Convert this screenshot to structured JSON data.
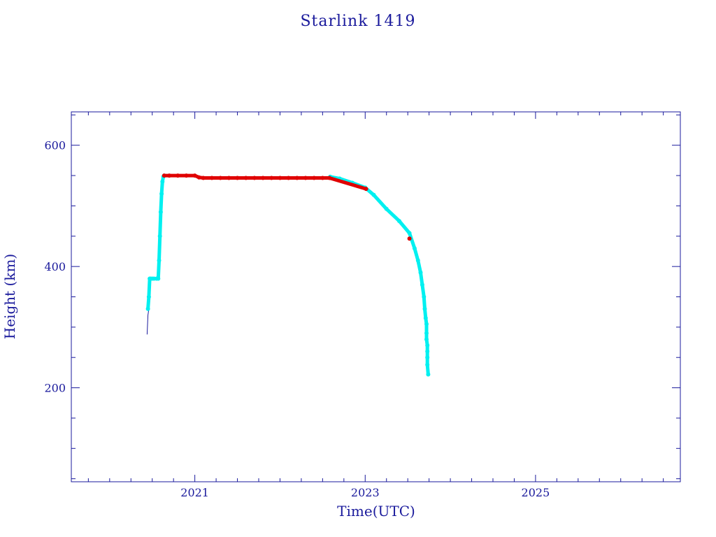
{
  "chart_data": {
    "type": "scatter",
    "title": "Starlink 1419",
    "xlabel": "Time(UTC)",
    "ylabel": "Height (km)",
    "xlim": [
      2019.55,
      2026.7
    ],
    "ylim": [
      45,
      655
    ],
    "x_ticks": [
      {
        "value": 2021,
        "label": "2021"
      },
      {
        "value": 2023,
        "label": "2023"
      },
      {
        "value": 2025,
        "label": "2025"
      }
    ],
    "y_ticks": [
      {
        "value": 200,
        "label": "200"
      },
      {
        "value": 400,
        "label": "400"
      },
      {
        "value": 600,
        "label": "600"
      }
    ],
    "grid": false,
    "legend": "none",
    "colors": {
      "axis": "#1a1a9c",
      "trace": "#1a1a9c",
      "normal": "#00f0f0",
      "station_keeping": "#e00000"
    },
    "series": [
      {
        "role": "trace",
        "color": "#1a1a9c",
        "x": [
          2020.44,
          2020.45,
          2020.46,
          2020.46,
          2020.48
        ],
        "y": [
          288,
          320,
          330,
          345,
          350
        ]
      },
      {
        "role": "points",
        "color": "#00f0f0",
        "x": [
          2020.45,
          2020.46,
          2020.47,
          2020.48,
          2020.5,
          2020.52,
          2020.55,
          2020.57,
          2020.58,
          2020.59,
          2020.6,
          2020.61,
          2020.62,
          2020.63,
          2020.64,
          2022.59,
          2022.7,
          2022.85,
          2023.0,
          2023.1,
          2023.25,
          2023.4,
          2023.52,
          2023.58,
          2023.62,
          2023.65,
          2023.67,
          2023.69,
          2023.7,
          2023.71,
          2023.72,
          2023.72,
          2023.72,
          2023.73,
          2023.73,
          2023.73,
          2023.73,
          2023.74
        ],
        "y": [
          330,
          350,
          380,
          380,
          380,
          380,
          380,
          380,
          410,
          450,
          490,
          520,
          540,
          548,
          550,
          548,
          545,
          538,
          530,
          518,
          495,
          475,
          455,
          430,
          410,
          390,
          370,
          350,
          330,
          315,
          305,
          290,
          280,
          270,
          260,
          250,
          238,
          222
        ]
      },
      {
        "role": "points",
        "color": "#e00000",
        "x": [
          2020.64,
          2020.7,
          2020.8,
          2020.9,
          2021.0,
          2021.05,
          2021.1,
          2021.2,
          2021.3,
          2021.4,
          2021.5,
          2021.6,
          2021.7,
          2021.8,
          2021.9,
          2022.0,
          2022.1,
          2022.2,
          2022.3,
          2022.4,
          2022.5,
          2022.58,
          2023.01,
          2023.52
        ],
        "y": [
          550,
          550,
          550,
          550,
          550,
          547,
          546,
          546,
          546,
          546,
          546,
          546,
          546,
          546,
          546,
          546,
          546,
          546,
          546,
          546,
          546,
          546,
          528,
          446
        ]
      }
    ]
  }
}
